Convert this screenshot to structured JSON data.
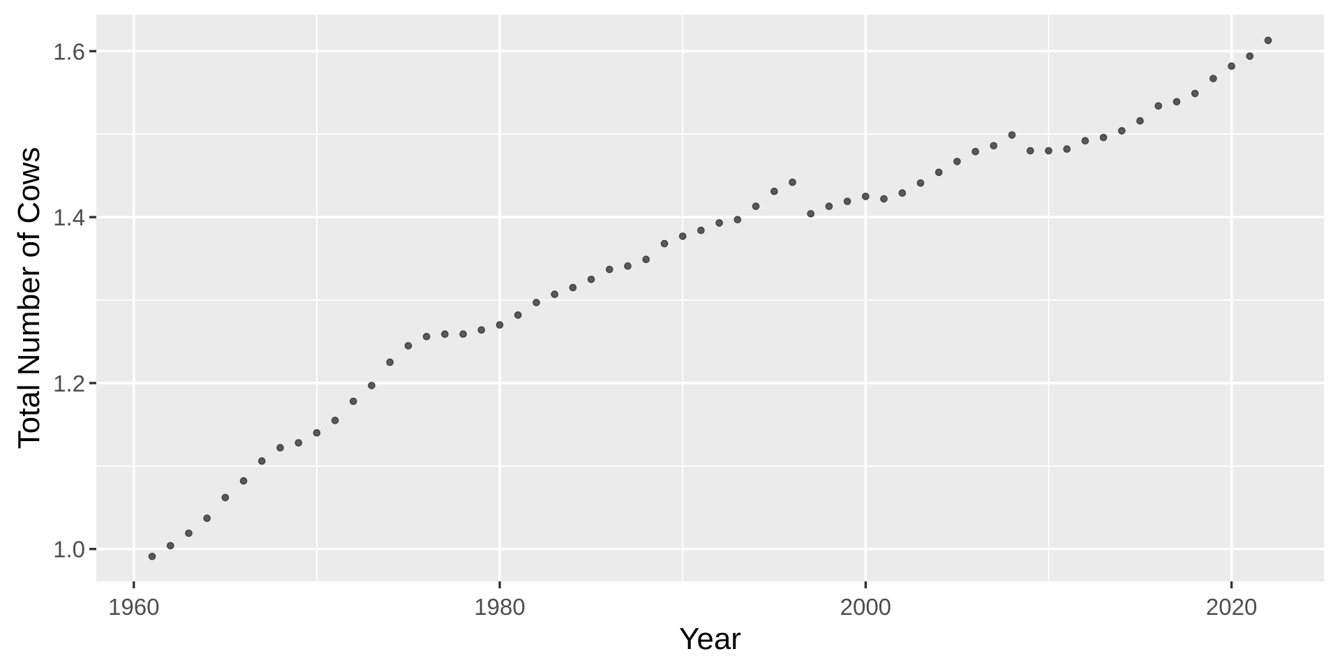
{
  "chart_data": {
    "type": "scatter",
    "title": "",
    "xlabel": "Year",
    "ylabel": "Total Number of Cows",
    "x": [
      1961,
      1962,
      1963,
      1964,
      1965,
      1966,
      1967,
      1968,
      1969,
      1970,
      1971,
      1972,
      1973,
      1974,
      1975,
      1976,
      1977,
      1978,
      1979,
      1980,
      1981,
      1982,
      1983,
      1984,
      1985,
      1986,
      1987,
      1988,
      1989,
      1990,
      1991,
      1992,
      1993,
      1994,
      1995,
      1996,
      1997,
      1998,
      1999,
      2000,
      2001,
      2002,
      2003,
      2004,
      2005,
      2006,
      2007,
      2008,
      2009,
      2010,
      2011,
      2012,
      2013,
      2014,
      2015,
      2016,
      2017,
      2018,
      2019,
      2020,
      2021,
      2022
    ],
    "y": [
      0.991,
      1.004,
      1.019,
      1.037,
      1.062,
      1.082,
      1.106,
      1.122,
      1.128,
      1.14,
      1.155,
      1.178,
      1.197,
      1.225,
      1.245,
      1.256,
      1.259,
      1.259,
      1.264,
      1.27,
      1.282,
      1.297,
      1.307,
      1.315,
      1.325,
      1.337,
      1.341,
      1.349,
      1.368,
      1.377,
      1.384,
      1.393,
      1.397,
      1.413,
      1.431,
      1.442,
      1.404,
      1.413,
      1.419,
      1.425,
      1.422,
      1.429,
      1.441,
      1.454,
      1.467,
      1.479,
      1.486,
      1.499,
      1.48,
      1.48,
      1.482,
      1.492,
      1.496,
      1.504,
      1.516,
      1.534,
      1.539,
      1.549,
      1.567,
      1.582,
      1.594,
      1.613
    ],
    "xlim": [
      1957.95,
      2025.05
    ],
    "ylim": [
      0.961,
      1.644
    ],
    "x_ticks": {
      "values": [
        1960,
        1980,
        2000,
        2020
      ],
      "labels": [
        "1960",
        "1980",
        "2000",
        "2020"
      ]
    },
    "y_ticks": {
      "values": [
        1.0,
        1.2,
        1.4,
        1.6
      ],
      "labels": [
        "1.0",
        "1.2",
        "1.4",
        "1.6"
      ]
    },
    "x_minor": [
      1970,
      1990,
      2010
    ],
    "y_minor": [
      1.1,
      1.3,
      1.5
    ],
    "grid": true,
    "legend": "none",
    "style": {
      "outer_bg": "#FFFFFF",
      "panel_bg": "#EBEBEB",
      "grid_color": "#FFFFFF",
      "point_fill": "#595959",
      "point_stroke": "#3F3F3F",
      "tick_mark_color": "#333333",
      "tick_label_color": "#4D4D4D",
      "axis_title_color": "#000000"
    }
  }
}
